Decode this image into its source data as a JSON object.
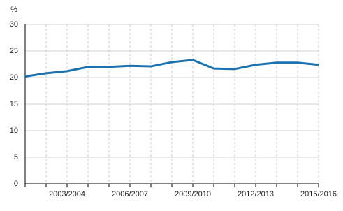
{
  "chart_data": {
    "type": "line",
    "y_label": "%",
    "categories": [
      null,
      null,
      "2003/2004",
      null,
      null,
      "2006/2007",
      null,
      null,
      "2009/2010",
      null,
      null,
      "2012/2013",
      null,
      null,
      "2015/2016"
    ],
    "values": [
      20.2,
      20.8,
      21.2,
      22.0,
      22.0,
      22.2,
      22.1,
      22.9,
      23.3,
      21.7,
      21.6,
      22.4,
      22.8,
      22.8,
      22.4
    ],
    "color": "#1a72b0",
    "ylim": [
      0,
      30
    ],
    "yticks": [
      0,
      5,
      10,
      15,
      20,
      25,
      30
    ],
    "grid": true
  }
}
